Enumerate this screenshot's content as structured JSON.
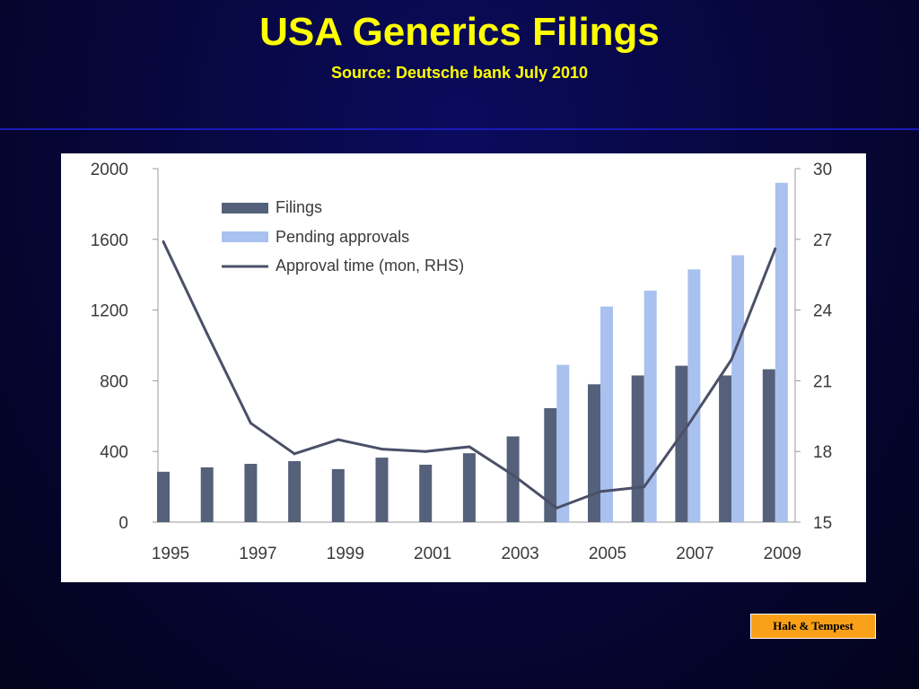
{
  "slide": {
    "title": "USA Generics Filings",
    "subtitle": "Source: Deutsche bank July 2010",
    "footer_badge": "Hale & Tempest"
  },
  "colors": {
    "background": "#07073f",
    "title": "#ffff00",
    "rule": "#1a1ab8",
    "filings": "#55617a",
    "pending": "#a9c1ee",
    "approval_line": "#4b5068",
    "axis_text": "#3a3a3a",
    "badge": "#f8a018"
  },
  "chart_data": {
    "type": "bar",
    "x": [
      1995,
      1996,
      1997,
      1998,
      1999,
      2000,
      2001,
      2002,
      2003,
      2004,
      2005,
      2006,
      2007,
      2008,
      2009
    ],
    "x_tick_labels": [
      "1995",
      "1997",
      "1999",
      "2001",
      "2003",
      "2005",
      "2007",
      "2009"
    ],
    "ylim": [
      0,
      2000
    ],
    "y_ticks": [
      "0",
      "400",
      "800",
      "1200",
      "1600",
      "2000"
    ],
    "y2lim": [
      15,
      30
    ],
    "y2_ticks": [
      "15",
      "18",
      "21",
      "24",
      "27",
      "30"
    ],
    "series": [
      {
        "name": "Filings",
        "kind": "bar",
        "axis": "left",
        "values": [
          285,
          310,
          330,
          345,
          300,
          365,
          325,
          390,
          485,
          645,
          780,
          830,
          885,
          830,
          865
        ]
      },
      {
        "name": "Pending approvals",
        "kind": "bar",
        "axis": "left",
        "values": [
          null,
          null,
          null,
          null,
          null,
          null,
          null,
          null,
          null,
          890,
          1220,
          1310,
          1430,
          1510,
          1920
        ]
      },
      {
        "name": "Approval time (mon, RHS)",
        "kind": "line",
        "axis": "right",
        "values": [
          26.9,
          23.0,
          19.2,
          17.9,
          18.5,
          18.1,
          18.0,
          18.2,
          17.0,
          15.6,
          16.3,
          16.5,
          19.1,
          21.9,
          26.6
        ]
      }
    ],
    "legend_position": "top-left",
    "grid": false
  }
}
